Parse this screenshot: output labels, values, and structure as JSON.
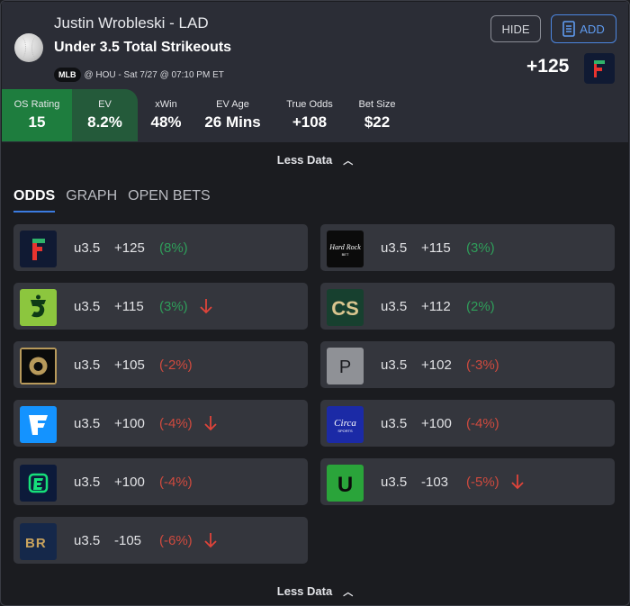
{
  "header": {
    "player": "Justin Wrobleski - LAD",
    "market": "Under 3.5 Total Strikeouts",
    "league": "MLB",
    "game": "@ HOU - Sat 7/27 @ 07:10 PM ET",
    "hide_label": "HIDE",
    "add_label": "ADD",
    "best_odds": "+125",
    "best_book_icon": "fanatics-logo"
  },
  "stats": [
    {
      "label": "OS Rating",
      "value": "15"
    },
    {
      "label": "EV",
      "value": "8.2%"
    },
    {
      "label": "xWin",
      "value": "48%"
    },
    {
      "label": "EV Age",
      "value": "26 Mins"
    },
    {
      "label": "True Odds",
      "value": "+108"
    },
    {
      "label": "Bet Size",
      "value": "$22"
    }
  ],
  "toggle_label": "Less Data",
  "tabs": [
    "ODDS",
    "GRAPH",
    "OPEN BETS"
  ],
  "active_tab": "ODDS",
  "odds_left": [
    {
      "book": "fanatics",
      "line": "u3.5",
      "price": "+125",
      "ev": "(8%)",
      "ev_sign": "pos",
      "arrow": false
    },
    {
      "book": "draftkings",
      "line": "u3.5",
      "price": "+115",
      "ev": "(3%)",
      "ev_sign": "pos",
      "arrow": true
    },
    {
      "book": "betmgm",
      "line": "u3.5",
      "price": "+105",
      "ev": "(-2%)",
      "ev_sign": "neg",
      "arrow": false
    },
    {
      "book": "fanduel",
      "line": "u3.5",
      "price": "+100",
      "ev": "(-4%)",
      "ev_sign": "neg",
      "arrow": true
    },
    {
      "book": "espnbet",
      "line": "u3.5",
      "price": "+100",
      "ev": "(-4%)",
      "ev_sign": "neg",
      "arrow": false
    },
    {
      "book": "betrivers",
      "line": "u3.5",
      "price": "-105",
      "ev": "(-6%)",
      "ev_sign": "neg",
      "arrow": true
    }
  ],
  "odds_right": [
    {
      "book": "hardrock",
      "line": "u3.5",
      "price": "+115",
      "ev": "(3%)",
      "ev_sign": "pos",
      "arrow": false
    },
    {
      "book": "caesars",
      "line": "u3.5",
      "price": "+112",
      "ev": "(2%)",
      "ev_sign": "pos",
      "arrow": false
    },
    {
      "book": "pinnacle",
      "line": "u3.5",
      "price": "+102",
      "ev": "(-3%)",
      "ev_sign": "neg",
      "arrow": false
    },
    {
      "book": "circa",
      "line": "u3.5",
      "price": "+100",
      "ev": "(-4%)",
      "ev_sign": "neg",
      "arrow": false
    },
    {
      "book": "unibet",
      "line": "u3.5",
      "price": "-103",
      "ev": "(-5%)",
      "ev_sign": "neg",
      "arrow": true
    }
  ],
  "logos": {
    "hardrock": {
      "line1": "Hard Rock",
      "line2": "BET"
    },
    "caesars": "CS",
    "pinnacle": "P",
    "circa": {
      "line1": "Circa",
      "line2": "SPORTS"
    },
    "unibet": "U",
    "betrivers": "BR"
  },
  "colors": {
    "positive": "#2f9e5a",
    "negative": "#cf4a3e",
    "accent": "#3b7be0",
    "os_rating_bg": "#1e7d3e",
    "ev_bg": "#245a3a"
  }
}
